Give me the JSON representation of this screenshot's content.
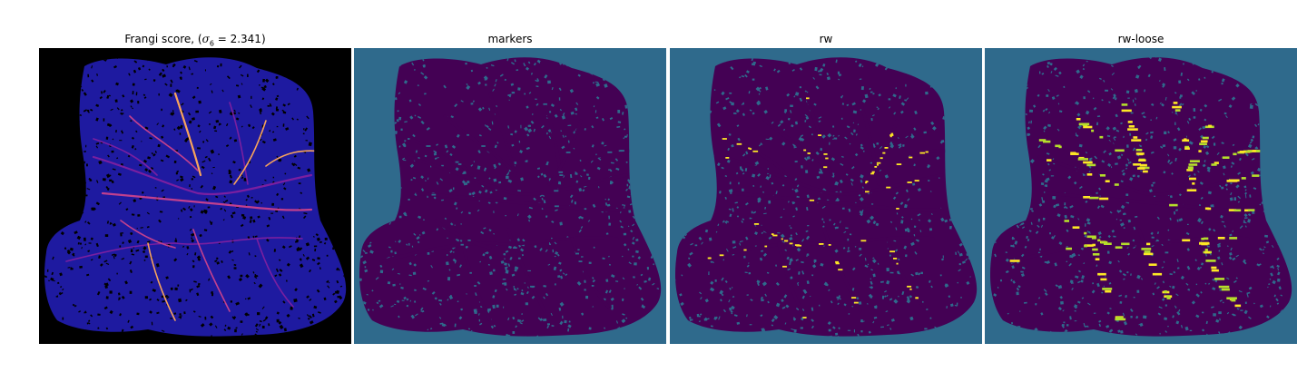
{
  "figure": {
    "panels": [
      {
        "title_prefix": "Frangi score, (",
        "title_symbol": "σ",
        "title_subscript": "6",
        "title_suffix": " = 2.341)",
        "colormap": "magma",
        "background_color": "#000000",
        "tissue_color": "#1e1aa0",
        "highlight_colors": [
          "#7a1fa0",
          "#c2408e",
          "#f7a35c"
        ]
      },
      {
        "title": "markers",
        "colormap": "viridis",
        "background_color": "#2f6a8c",
        "tissue_color": "#440154",
        "highlight_colors": [
          "#2f6a8c"
        ]
      },
      {
        "title": "rw",
        "colormap": "viridis",
        "background_color": "#2f6a8c",
        "tissue_color": "#440154",
        "highlight_colors": [
          "#fde725"
        ]
      },
      {
        "title": "rw-loose",
        "colormap": "viridis",
        "background_color": "#2f6a8c",
        "tissue_color": "#440154",
        "highlight_colors": [
          "#fde725",
          "#b5de2b"
        ]
      }
    ]
  }
}
